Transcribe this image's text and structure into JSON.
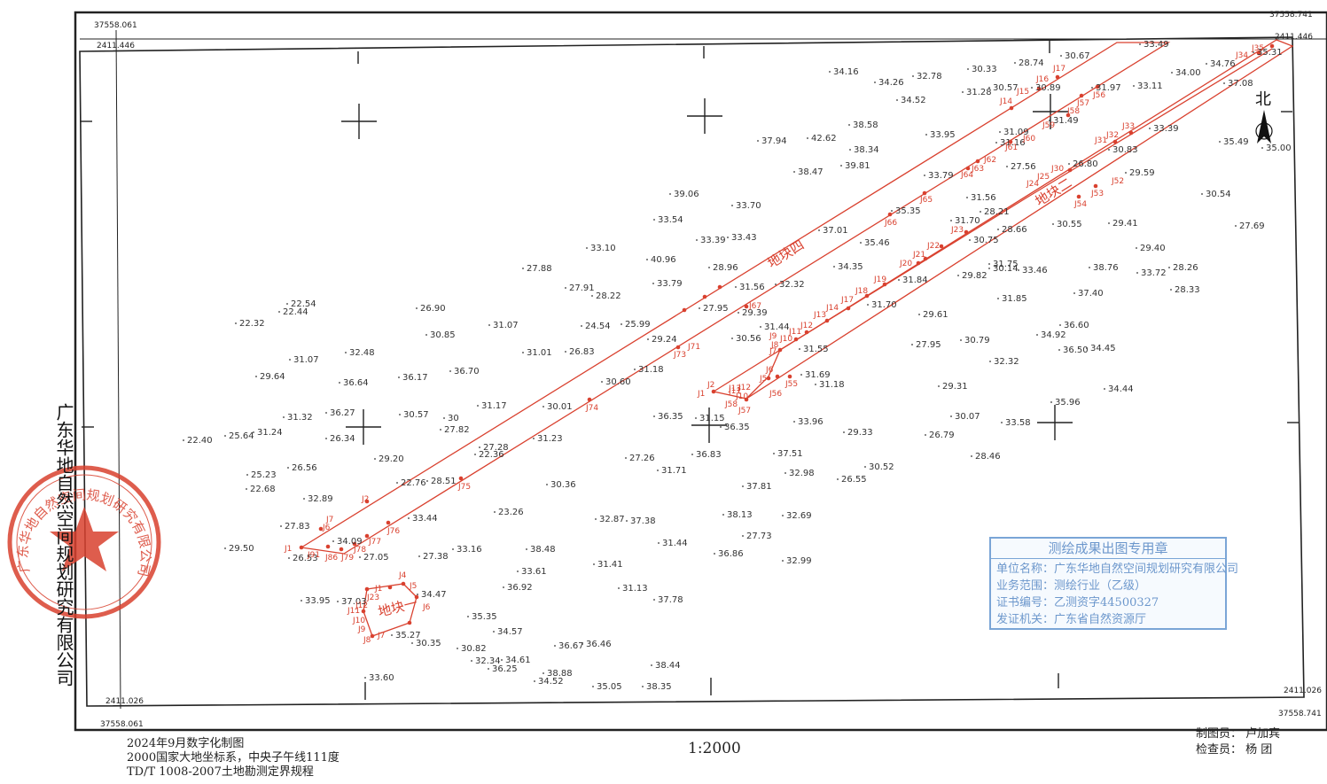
{
  "map": {
    "corners": {
      "top_left_y": "37558.061",
      "top_left_x": "2411.446",
      "top_right_y": "37558.741",
      "top_right_x": "2411.446",
      "bottom_left_x": "2411.026",
      "bottom_left_y": "37558.061",
      "bottom_right_x": "2411.026",
      "bottom_right_y": "37558.741"
    },
    "north_label": "北",
    "plot_labels": [
      "地块四",
      "地块二",
      "地块一"
    ],
    "line_color": "#d9412f",
    "elevations": [
      "34.16",
      "34.26",
      "32.78",
      "30.33",
      "28.74",
      "30.67",
      "31.28",
      "30.57",
      "30.89",
      "31.97",
      "33.11",
      "34.00",
      "34.76",
      "37.08",
      "35.31",
      "34.52",
      "31.49",
      "33.39",
      "30.83",
      "35.49",
      "35.00",
      "38.58",
      "33.95",
      "31.09",
      "31.16",
      "37.94",
      "42.62",
      "38.34",
      "38.47",
      "39.81",
      "27.56",
      "26.80",
      "29.59",
      "33.79",
      "30.54",
      "39.06",
      "33.70",
      "31.56",
      "28.21",
      "35.35",
      "37.01",
      "31.70",
      "30.55",
      "29.41",
      "27.69",
      "33.39",
      "33.43",
      "35.46",
      "28.66",
      "30.75",
      "29.40",
      "33.10",
      "40.96",
      "28.96",
      "34.35",
      "31.75",
      "30.14",
      "33.46",
      "38.76",
      "33.72",
      "28.26",
      "27.88",
      "27.91",
      "28.22",
      "33.79",
      "31.56",
      "32.32",
      "31.84",
      "29.82",
      "28.33",
      "22.54",
      "22.44",
      "22.32",
      "26.90",
      "31.07",
      "24.54",
      "25.99",
      "27.95",
      "29.39",
      "31.70",
      "37.40",
      "31.85",
      "30.85",
      "29.24",
      "30.56",
      "31.44",
      "29.61",
      "36.60",
      "34.92",
      "32.48",
      "31.01",
      "26.83",
      "31.55",
      "27.95",
      "30.79",
      "36.50",
      "34.45",
      "31.07",
      "29.64",
      "36.64",
      "36.17",
      "36.70",
      "31.18",
      "30.60",
      "31.69",
      "31.18",
      "32.32",
      "29.31",
      "34.44",
      "36.27",
      "30.57",
      "31.17",
      "30.01",
      "36.35",
      "31.15",
      "36.35",
      "33.96",
      "29.33",
      "30.07",
      "26.79",
      "33.58",
      "35.96",
      "31.32",
      "30",
      "27.82",
      "31.23",
      "27.28",
      "22.36",
      "22.40",
      "25.64",
      "31.24",
      "26.34",
      "27.26",
      "36.83",
      "37.51",
      "32.98",
      "30.52",
      "26.55",
      "28.46",
      "29.20",
      "26.56",
      "25.23",
      "22.68",
      "22.76",
      "28.51",
      "30.36",
      "31.71",
      "37.81",
      "32.89",
      "23.26",
      "33.44",
      "32.87",
      "37.38",
      "38.13",
      "32.69",
      "27.83",
      "27.73",
      "29.50",
      "26.53",
      "34.09",
      "27.05",
      "27.38",
      "33.16",
      "38.48",
      "31.44",
      "36.86",
      "32.99",
      "33.61",
      "31.41",
      "36.92",
      "33.95",
      "37.03",
      "34.47",
      "31.13",
      "37.78",
      "35.35",
      "34.57",
      "35.27",
      "30.35",
      "30.82",
      "32.34",
      "34.61",
      "36.25",
      "36.67",
      "36.46",
      "38.44",
      "33.60",
      "38.88",
      "34.52",
      "35.05",
      "38.35",
      "33.49",
      "33.54",
      "40"
    ],
    "point_labels": [
      "J35",
      "J34",
      "J17",
      "J16",
      "J15",
      "J14",
      "J58",
      "J57",
      "J56",
      "J59",
      "J60",
      "J61",
      "J62",
      "J63",
      "J64",
      "J65",
      "J66",
      "J33",
      "J32",
      "J31",
      "J30",
      "J25",
      "J24",
      "J52",
      "J53",
      "J54",
      "J23",
      "J22",
      "J21",
      "J20",
      "J19",
      "J18",
      "J17",
      "J14",
      "J13",
      "J12",
      "J11",
      "J10",
      "J9",
      "J8",
      "J7",
      "J6",
      "J5",
      "J55",
      "J56",
      "J57",
      "J58",
      "J2",
      "J1",
      "J13",
      "J12",
      "J11",
      "J10",
      "J67",
      "J71",
      "J73",
      "J74",
      "J75",
      "J76",
      "J77",
      "J78",
      "J79",
      "J86",
      "J91",
      "J1",
      "J7",
      "J6",
      "J2",
      "J4",
      "J5",
      "J1",
      "J23",
      "J12",
      "J11",
      "J10",
      "J9",
      "J8",
      "J7",
      "J6"
    ]
  },
  "company": "广东华地自然空间规划研究有限公司",
  "footer": {
    "date": "2024年9月数字化制图",
    "coordinate_system": "2000国家大地坐标系，中央子午线111度",
    "standard": "TD/T 1008-2007土地勘测定界规程",
    "scale": "1:2000",
    "drafter": "制图员： 卢加宾",
    "checker": "检查员： 杨   团"
  },
  "stamp": {
    "title": "测绘成果出图专用章",
    "unit": "单位名称：广东华地自然空间规划研究有限公司",
    "scope": "业务范围：测绘行业（乙级）",
    "cert": "证书编号：乙测资字44500327",
    "issuer": "发证机关：广东省自然资源厅"
  },
  "seal": {
    "color": "#d9412f",
    "text": "广东华地自然空间规划研究有限公司"
  }
}
